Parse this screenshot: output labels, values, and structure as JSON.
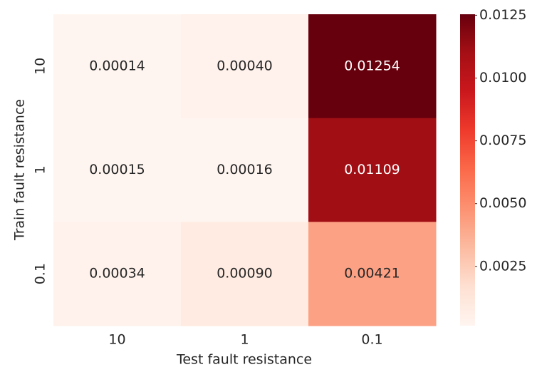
{
  "chart_data": {
    "type": "heatmap",
    "x_label": "Test fault resistance",
    "y_label": "Train fault resistance",
    "x_categories": [
      "10",
      "1",
      "0.1"
    ],
    "y_categories": [
      "10",
      "1",
      "0.1"
    ],
    "values": [
      [
        0.00014,
        0.0004,
        0.01254
      ],
      [
        0.00015,
        0.00016,
        0.01109
      ],
      [
        0.00034,
        0.0009,
        0.00421
      ]
    ],
    "value_labels": [
      [
        "0.00014",
        "0.00040",
        "0.01254"
      ],
      [
        "0.00015",
        "0.00016",
        "0.01109"
      ],
      [
        "0.00034",
        "0.00090",
        "0.00421"
      ]
    ],
    "colormap": "Reds",
    "zlim": [
      0.00014,
      0.01254
    ],
    "zticks": [
      0.0025,
      {
        "value": 0.005,
        "label": "0.0050"
      },
      0.0075,
      {
        "value": 0.01,
        "label": "0.0100"
      },
      0.0125
    ]
  }
}
